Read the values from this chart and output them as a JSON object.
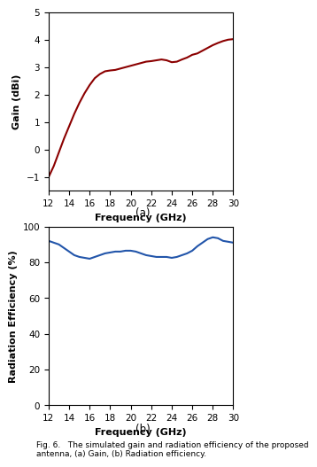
{
  "freq_gain": [
    12,
    12.5,
    13,
    13.5,
    14,
    14.5,
    15,
    15.5,
    16,
    16.5,
    17,
    17.5,
    18,
    18.5,
    19,
    19.5,
    20,
    20.5,
    21,
    21.5,
    22,
    22.5,
    23,
    23.5,
    24,
    24.5,
    25,
    25.5,
    26,
    26.5,
    27,
    27.5,
    28,
    28.5,
    29,
    29.5,
    30
  ],
  "gain_values": [
    -1.0,
    -0.6,
    -0.1,
    0.4,
    0.85,
    1.3,
    1.7,
    2.05,
    2.35,
    2.6,
    2.75,
    2.85,
    2.88,
    2.9,
    2.95,
    3.0,
    3.05,
    3.1,
    3.15,
    3.2,
    3.22,
    3.25,
    3.28,
    3.25,
    3.18,
    3.2,
    3.28,
    3.35,
    3.45,
    3.5,
    3.6,
    3.7,
    3.8,
    3.88,
    3.95,
    4.0,
    4.02
  ],
  "freq_eff": [
    12,
    12.5,
    13,
    13.5,
    14,
    14.5,
    15,
    15.5,
    16,
    16.5,
    17,
    17.5,
    18,
    18.5,
    19,
    19.5,
    20,
    20.5,
    21,
    21.5,
    22,
    22.5,
    23,
    23.5,
    24,
    24.5,
    25,
    25.5,
    26,
    26.5,
    27,
    27.5,
    28,
    28.5,
    29,
    29.5,
    30
  ],
  "eff_values": [
    92,
    91,
    90,
    88,
    86,
    84,
    83,
    82.5,
    82,
    83,
    84,
    85,
    85.5,
    86,
    86,
    86.5,
    86.5,
    86,
    85,
    84,
    83.5,
    83,
    83,
    83,
    82.5,
    83,
    84,
    85,
    86.5,
    89,
    91,
    93,
    94,
    93.5,
    92,
    91.5,
    91
  ],
  "gain_color": "#8B0000",
  "eff_color": "#2255AA",
  "gain_xlabel": "Frequency (GHz)",
  "gain_ylabel": "Gain (dBi)",
  "eff_xlabel": "Frequency (GHz)",
  "eff_ylabel": "Radiation Efficiency (%)",
  "gain_ylim": [
    -1.5,
    5
  ],
  "eff_ylim": [
    0,
    100
  ],
  "gain_yticks": [
    -1,
    0,
    1,
    2,
    3,
    4,
    5
  ],
  "eff_yticks": [
    0,
    20,
    40,
    60,
    80,
    100
  ],
  "xlim": [
    12,
    30
  ],
  "xticks": [
    12,
    14,
    16,
    18,
    20,
    22,
    24,
    26,
    28,
    30
  ],
  "label_a": "(a)",
  "label_b": "(b)",
  "caption": "Fig. 6.   The simulated gain and radiation efficiency of the proposed\nantenna, (a) Gain, (b) Radiation efficiency.",
  "line_width": 1.5
}
